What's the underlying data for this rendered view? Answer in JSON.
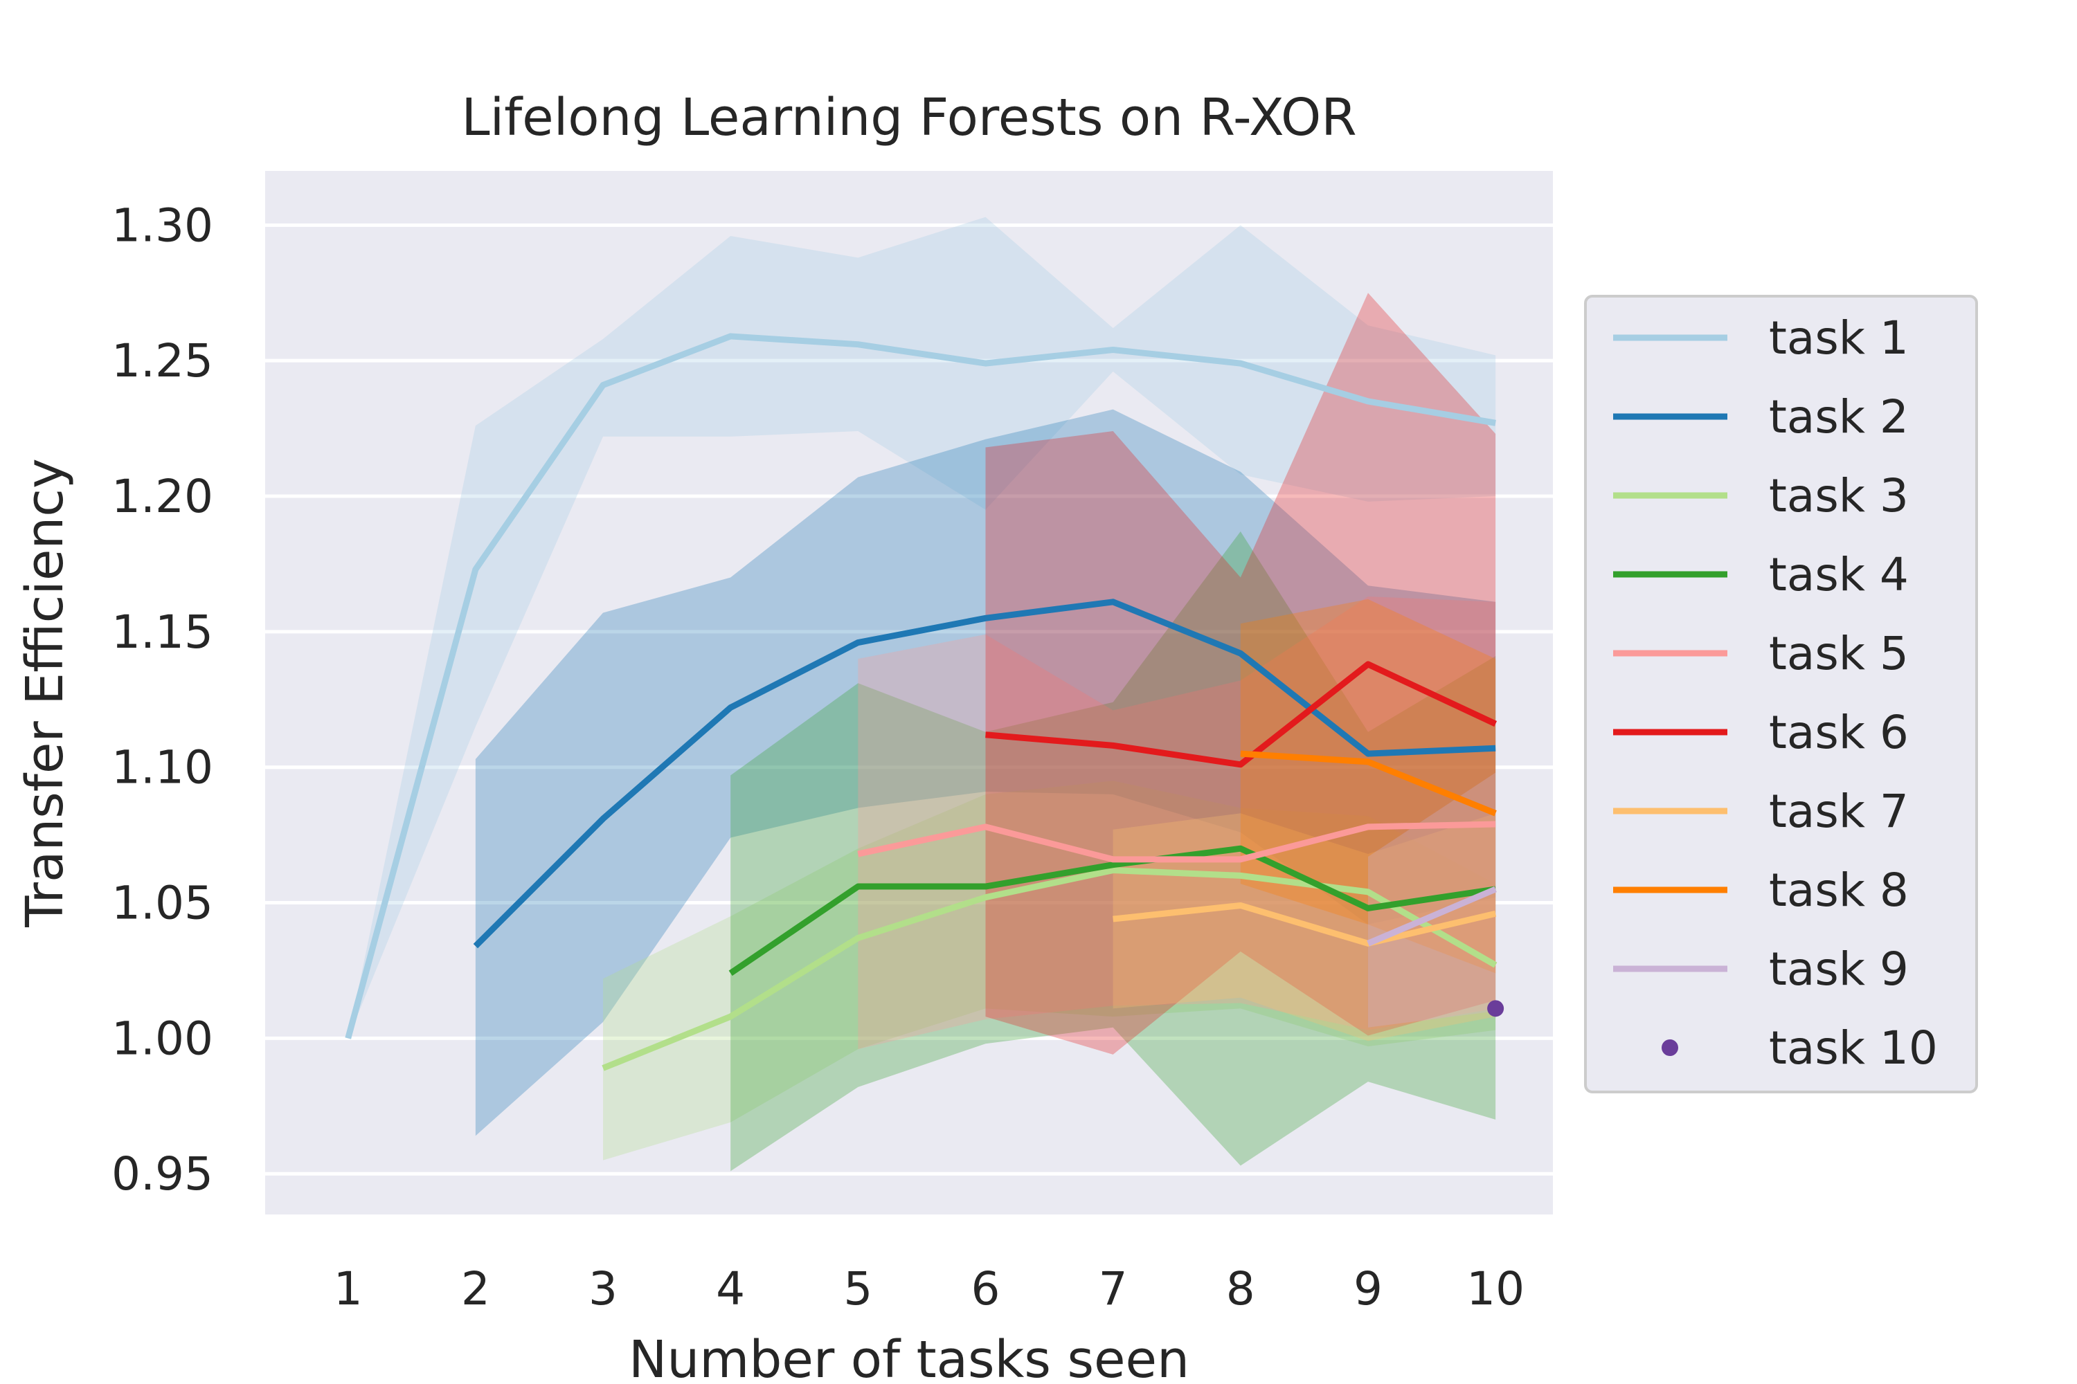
{
  "chart_data": {
    "type": "line",
    "title": "Lifelong Learning Forests on R-XOR",
    "xlabel": "Number of tasks seen",
    "ylabel": "Transfer Efficiency",
    "xlim": [
      0.35,
      10.45
    ],
    "ylim": [
      0.935,
      1.32
    ],
    "xticks": [
      1,
      2,
      3,
      4,
      5,
      6,
      7,
      8,
      9,
      10
    ],
    "xtick_labels": [
      "1",
      "2",
      "3",
      "4",
      "5",
      "6",
      "7",
      "8",
      "9",
      "10"
    ],
    "yticks": [
      0.95,
      1.0,
      1.05,
      1.1,
      1.15,
      1.2,
      1.25,
      1.3
    ],
    "ytick_labels": [
      "0.95",
      "1.00",
      "1.05",
      "1.10",
      "1.15",
      "1.20",
      "1.25",
      "1.30"
    ],
    "grid": true,
    "legend_position": "right",
    "background_color": "#EAEAF2",
    "series": [
      {
        "name": "task 1",
        "color": "#A6CEE3",
        "x": [
          1,
          2,
          3,
          4,
          5,
          6,
          7,
          8,
          9,
          10
        ],
        "y": [
          1.0,
          1.173,
          1.241,
          1.259,
          1.256,
          1.249,
          1.254,
          1.249,
          1.235,
          1.227
        ],
        "lower": [
          1.0,
          1.115,
          1.222,
          1.222,
          1.224,
          1.195,
          1.246,
          1.208,
          1.198,
          1.2
        ],
        "upper": [
          1.0,
          1.226,
          1.258,
          1.296,
          1.288,
          1.303,
          1.262,
          1.3,
          1.263,
          1.252
        ]
      },
      {
        "name": "task 2",
        "color": "#1F78B4",
        "x": [
          2,
          3,
          4,
          5,
          6,
          7,
          8,
          9,
          10
        ],
        "y": [
          1.034,
          1.081,
          1.122,
          1.146,
          1.155,
          1.161,
          1.142,
          1.105,
          1.107
        ],
        "lower": [
          0.964,
          1.006,
          1.074,
          1.085,
          1.091,
          1.09,
          1.076,
          1.042,
          1.052
        ],
        "upper": [
          1.103,
          1.157,
          1.17,
          1.207,
          1.221,
          1.232,
          1.209,
          1.167,
          1.161
        ]
      },
      {
        "name": "task 3",
        "color": "#B2DF8A",
        "x": [
          3,
          4,
          5,
          6,
          7,
          8,
          9,
          10
        ],
        "y": [
          0.989,
          1.008,
          1.037,
          1.052,
          1.062,
          1.06,
          1.054,
          1.027
        ],
        "lower": [
          0.955,
          0.969,
          0.996,
          1.011,
          1.008,
          1.011,
          0.997,
          1.003
        ],
        "upper": [
          1.022,
          1.045,
          1.07,
          1.09,
          1.095,
          1.085,
          1.082,
          1.057
        ]
      },
      {
        "name": "task 4",
        "color": "#33A02C",
        "x": [
          4,
          5,
          6,
          7,
          8,
          9,
          10
        ],
        "y": [
          1.024,
          1.056,
          1.056,
          1.064,
          1.07,
          1.048,
          1.055
        ],
        "lower": [
          0.951,
          0.982,
          0.998,
          1.004,
          0.953,
          0.984,
          0.97
        ],
        "upper": [
          1.097,
          1.131,
          1.113,
          1.124,
          1.187,
          1.113,
          1.141
        ]
      },
      {
        "name": "task 5",
        "color": "#FB9A99",
        "x": [
          5,
          6,
          7,
          8,
          9,
          10
        ],
        "y": [
          1.068,
          1.078,
          1.066,
          1.066,
          1.078,
          1.079
        ],
        "lower": [
          0.996,
          1.007,
          1.012,
          1.013,
          1.003,
          1.011
        ],
        "upper": [
          1.14,
          1.149,
          1.121,
          1.132,
          1.163,
          1.161
        ]
      },
      {
        "name": "task 6",
        "color": "#E31A1C",
        "x": [
          6,
          7,
          8,
          9,
          10
        ],
        "y": [
          1.112,
          1.108,
          1.101,
          1.138,
          1.116
        ],
        "lower": [
          1.008,
          0.994,
          1.032,
          1.001,
          1.014
        ],
        "upper": [
          1.218,
          1.224,
          1.17,
          1.275,
          1.223
        ]
      },
      {
        "name": "task 7",
        "color": "#FDBF6F",
        "x": [
          7,
          8,
          9,
          10
        ],
        "y": [
          1.044,
          1.049,
          1.035,
          1.046
        ],
        "lower": [
          1.011,
          1.015,
          0.999,
          1.008
        ],
        "upper": [
          1.077,
          1.083,
          1.068,
          1.083
        ]
      },
      {
        "name": "task 8",
        "color": "#FF7F00",
        "x": [
          8,
          9,
          10
        ],
        "y": [
          1.105,
          1.102,
          1.083
        ],
        "lower": [
          1.057,
          1.042,
          1.024
        ],
        "upper": [
          1.153,
          1.162,
          1.14
        ]
      },
      {
        "name": "task 9",
        "color": "#CAB2D6",
        "x": [
          9,
          10
        ],
        "y": [
          1.035,
          1.055
        ],
        "lower": [
          1.004,
          1.01
        ],
        "upper": [
          1.067,
          1.098
        ]
      },
      {
        "name": "task 10",
        "color": "#6A3D9A",
        "x": [
          10
        ],
        "y": [
          1.011
        ],
        "lower": [
          1.011
        ],
        "upper": [
          1.011
        ]
      }
    ]
  }
}
